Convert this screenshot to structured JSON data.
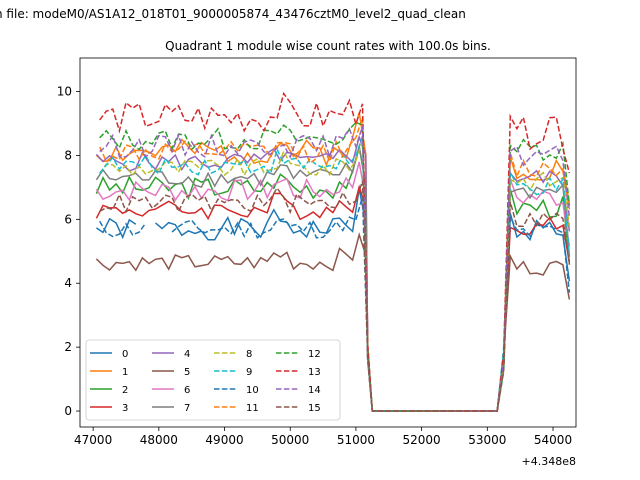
{
  "figure": {
    "suptitle": "n file: modeM0/AS1A12_018T01_9000005874_43476cztM0_level2_quad_clean",
    "title": "Quadrant 1 module wise count rates with 100.0s bins."
  },
  "chart_data": {
    "type": "line",
    "title": "Quadrant 1 module wise count rates with 100.0s bins.",
    "xlabel": "",
    "ylabel": "",
    "x_offset_label": "+4.348e8",
    "xlim": [
      46800,
      54350
    ],
    "ylim": [
      -0.5,
      11.05
    ],
    "xticks": [
      47000,
      48000,
      49000,
      50000,
      51000,
      52000,
      53000,
      54000
    ],
    "xtick_labels": [
      "47000",
      "48000",
      "49000",
      "50000",
      "51000",
      "52000",
      "53000",
      "54000"
    ],
    "yticks": [
      0,
      2,
      4,
      6,
      8,
      10
    ],
    "ytick_labels": [
      "0",
      "2",
      "4",
      "6",
      "8",
      "10"
    ],
    "grid": false,
    "legend": {
      "placement": "lower-left",
      "columns": 4
    },
    "series": [
      {
        "name": "0",
        "color": "#1f77b4",
        "dashed": false,
        "base": 5.7,
        "v": 0.35,
        "seed": 1,
        "shift": 0,
        "gap": [
          47700,
          47850
        ],
        "post": 5.7
      },
      {
        "name": "1",
        "color": "#ff7f0e",
        "dashed": false,
        "base": 8.1,
        "v": 0.4,
        "seed": 2,
        "shift": 0,
        "gap": null,
        "post": 7.6
      },
      {
        "name": "2",
        "color": "#2ca02c",
        "dashed": false,
        "base": 7.0,
        "v": 0.35,
        "seed": 3,
        "shift": 0,
        "gap": null,
        "post": 6.4
      },
      {
        "name": "3",
        "color": "#d62728",
        "dashed": false,
        "base": 6.3,
        "v": 0.3,
        "seed": 4,
        "shift": 0,
        "gap": null,
        "post": 5.8
      },
      {
        "name": "4",
        "color": "#9467bd",
        "dashed": false,
        "base": 7.8,
        "v": 0.3,
        "seed": 5,
        "shift": 0,
        "gap": null,
        "post": 7.3
      },
      {
        "name": "5",
        "color": "#8c564b",
        "dashed": false,
        "base": 4.65,
        "v": 0.25,
        "seed": 6,
        "shift": 0,
        "gap": null,
        "post": 4.5
      },
      {
        "name": "6",
        "color": "#e377c2",
        "dashed": false,
        "base": 6.9,
        "v": 0.35,
        "seed": 7,
        "shift": 0,
        "gap": null,
        "post": 6.7
      },
      {
        "name": "7",
        "color": "#7f7f7f",
        "dashed": false,
        "base": 7.3,
        "v": 0.3,
        "seed": 8,
        "shift": 0,
        "gap": null,
        "post": 6.9
      },
      {
        "name": "8",
        "color": "#bcbd22",
        "dashed": true,
        "base": 7.6,
        "v": 0.3,
        "seed": 9,
        "shift": 50,
        "gap": null,
        "post": 7.2
      },
      {
        "name": "9",
        "color": "#17becf",
        "dashed": true,
        "base": 7.7,
        "v": 0.3,
        "seed": 10,
        "shift": 50,
        "gap": null,
        "post": 7.0
      },
      {
        "name": "10",
        "color": "#1f77b4",
        "dashed": true,
        "base": 5.7,
        "v": 0.3,
        "seed": 11,
        "shift": 50,
        "gap": [
          47900,
          48100
        ],
        "post": 5.6
      },
      {
        "name": "11",
        "color": "#ff7f0e",
        "dashed": true,
        "base": 8.1,
        "v": 0.35,
        "seed": 12,
        "shift": 50,
        "gap": null,
        "post": 7.6
      },
      {
        "name": "12",
        "color": "#2ca02c",
        "dashed": true,
        "base": 8.5,
        "v": 0.35,
        "seed": 13,
        "shift": 50,
        "gap": null,
        "post": 8.2
      },
      {
        "name": "13",
        "color": "#d62728",
        "dashed": true,
        "base": 9.2,
        "v": 0.5,
        "seed": 14,
        "shift": 50,
        "gap": null,
        "post": 8.7
      },
      {
        "name": "14",
        "color": "#9467bd",
        "dashed": true,
        "base": 8.3,
        "v": 0.35,
        "seed": 15,
        "shift": 50,
        "gap": null,
        "post": 8.0
      },
      {
        "name": "15",
        "color": "#8c564b",
        "dashed": true,
        "base": 6.5,
        "v": 0.3,
        "seed": 16,
        "shift": 50,
        "gap": null,
        "post": 6.0
      }
    ]
  }
}
